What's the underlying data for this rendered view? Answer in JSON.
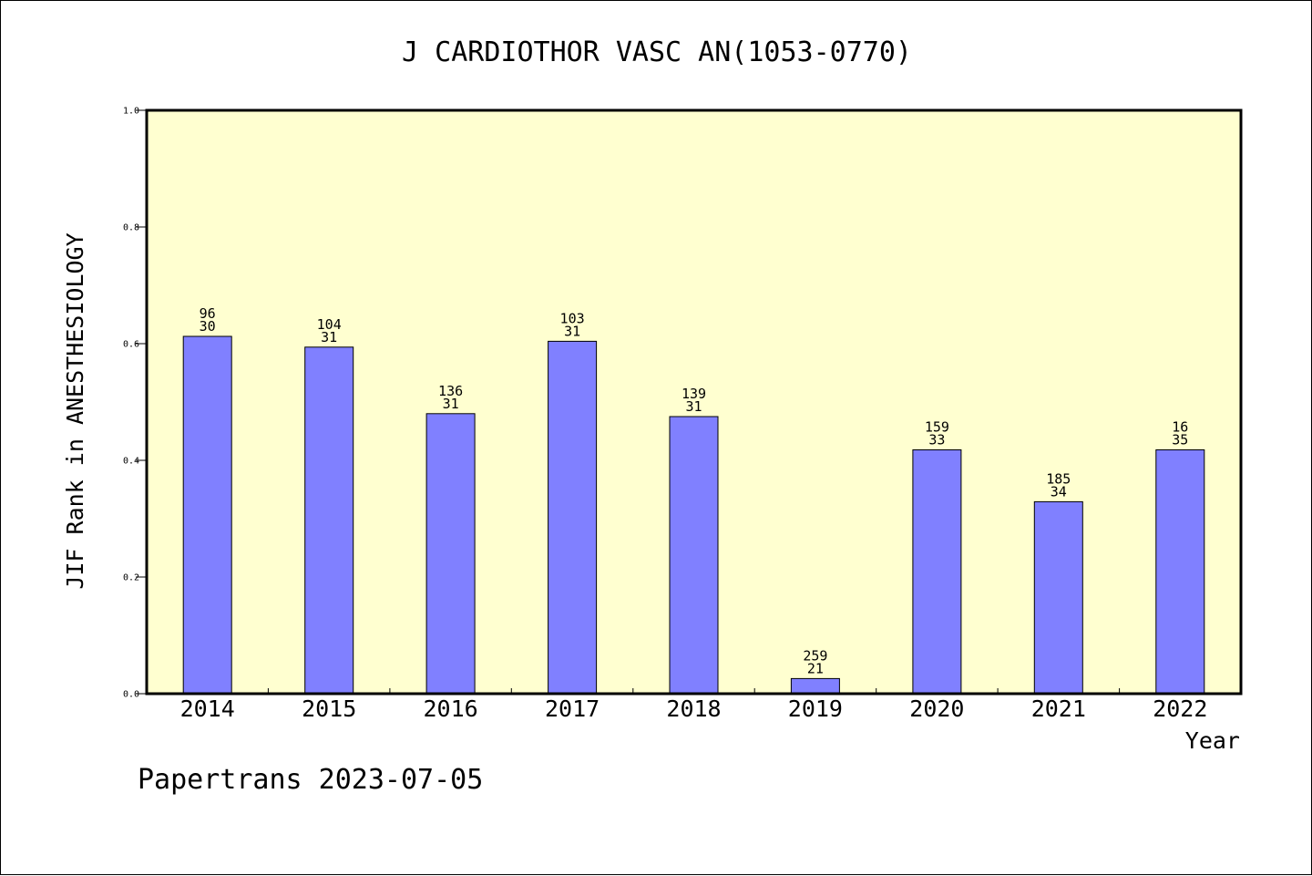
{
  "chart_data": {
    "type": "bar",
    "title": "J CARDIOTHOR VASC AN(1053-0770)",
    "xlabel": "Year",
    "ylabel": "JIF Rank in ANESTHESIOLOGY",
    "ylim": [
      0,
      1.0
    ],
    "yticks": [
      "0.0",
      "0.2",
      "0.4",
      "0.6",
      "0.8",
      "1.0"
    ],
    "categories": [
      "2014",
      "2015",
      "2016",
      "2017",
      "2018",
      "2019",
      "2020",
      "2021",
      "2022"
    ],
    "values": [
      0.6125,
      0.594,
      0.48,
      0.604,
      0.475,
      0.026,
      0.418,
      0.329,
      0.418
    ],
    "labels_top": [
      "96",
      "104",
      "136",
      "103",
      "139",
      "259",
      "159",
      "185",
      "16"
    ],
    "labels_bottom": [
      "30",
      "31",
      "31",
      "31",
      "31",
      "21",
      "33",
      "34",
      "35"
    ],
    "grid": false,
    "colors": {
      "plot_background": "#ffffd0",
      "bar_fill": "#8080ff",
      "bar_stroke": "#000000"
    }
  },
  "footer": "Papertrans 2023-07-05"
}
